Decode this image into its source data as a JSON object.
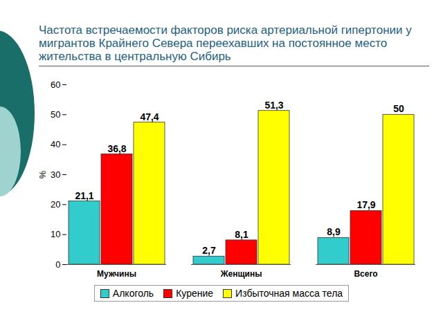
{
  "chart_data": {
    "type": "bar",
    "title": "Частота встречаемости факторов риска артериальной гипертонии у мигрантов Крайнего Севера переехавших на постоянное место жительства в центральную Сибирь",
    "categories": [
      "Мужчины",
      "Женщины",
      "Всего"
    ],
    "series": [
      {
        "name": "Алкоголь",
        "color": "#33cccc",
        "values": [
          21.1,
          2.7,
          8.9
        ],
        "value_labels": [
          "21,1",
          "2,7",
          "8,9"
        ]
      },
      {
        "name": "Курение",
        "color": "#ff0000",
        "values": [
          36.8,
          8.1,
          17.9
        ],
        "value_labels": [
          "36,8",
          "8,1",
          "17,9"
        ]
      },
      {
        "name": "Избыточная масса тела",
        "color": "#ffff00",
        "values": [
          47.4,
          51.3,
          50
        ],
        "value_labels": [
          "47,4",
          "51,3",
          "50"
        ]
      }
    ],
    "y_label": "%",
    "ylim": [
      0,
      60
    ],
    "yticks": [
      0,
      10,
      20,
      30,
      40,
      50,
      60
    ],
    "grid": false,
    "data_labels": true,
    "legend": "bottom"
  }
}
